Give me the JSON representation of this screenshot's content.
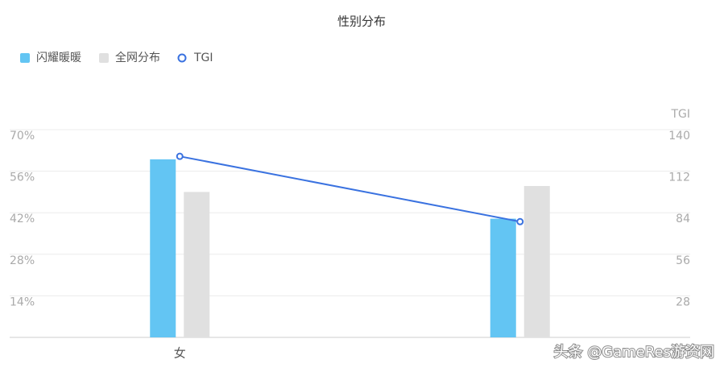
{
  "chart_data": {
    "type": "bar-line",
    "title": "性别分布",
    "categories": [
      "女",
      null
    ],
    "series": [
      {
        "name": "闪耀暖暖",
        "type": "bar",
        "color": "#63c5f3",
        "values": [
          60,
          40
        ]
      },
      {
        "name": "全网分布",
        "type": "bar",
        "color": "#e0e0e0",
        "values": [
          49,
          51
        ]
      },
      {
        "name": "TGI",
        "type": "line",
        "axis": "y2",
        "color": "#3a72e0",
        "values": [
          122,
          78
        ]
      }
    ],
    "ylim": [
      0,
      70
    ],
    "yticks": [
      {
        "value": 14,
        "label": "14%"
      },
      {
        "value": 28,
        "label": "28%"
      },
      {
        "value": 42,
        "label": "42%"
      },
      {
        "value": 56,
        "label": "56%"
      },
      {
        "value": 70,
        "label": "70%"
      }
    ],
    "y2label": "TGI",
    "y2lim": [
      0,
      140
    ],
    "y2ticks": [
      28,
      56,
      84,
      112,
      140
    ],
    "grid": true,
    "legend": "top-left",
    "watermark": "头条 @GameRes游资网"
  }
}
